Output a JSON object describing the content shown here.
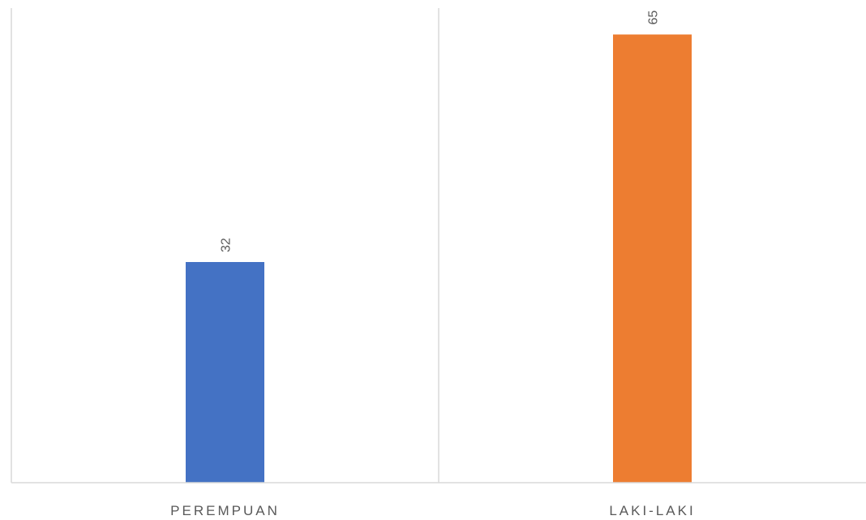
{
  "chart_data": {
    "type": "bar",
    "categories": [
      "PEREMPUAN",
      "LAKI-LAKI"
    ],
    "values": [
      32,
      65
    ],
    "colors": [
      "#4472C4",
      "#ED7D31"
    ],
    "data_labels": [
      "32",
      "65"
    ],
    "title": "",
    "xlabel": "",
    "ylabel": "",
    "ylim": [
      0,
      70
    ],
    "grid": false,
    "legend": "none",
    "category_separators": true
  }
}
